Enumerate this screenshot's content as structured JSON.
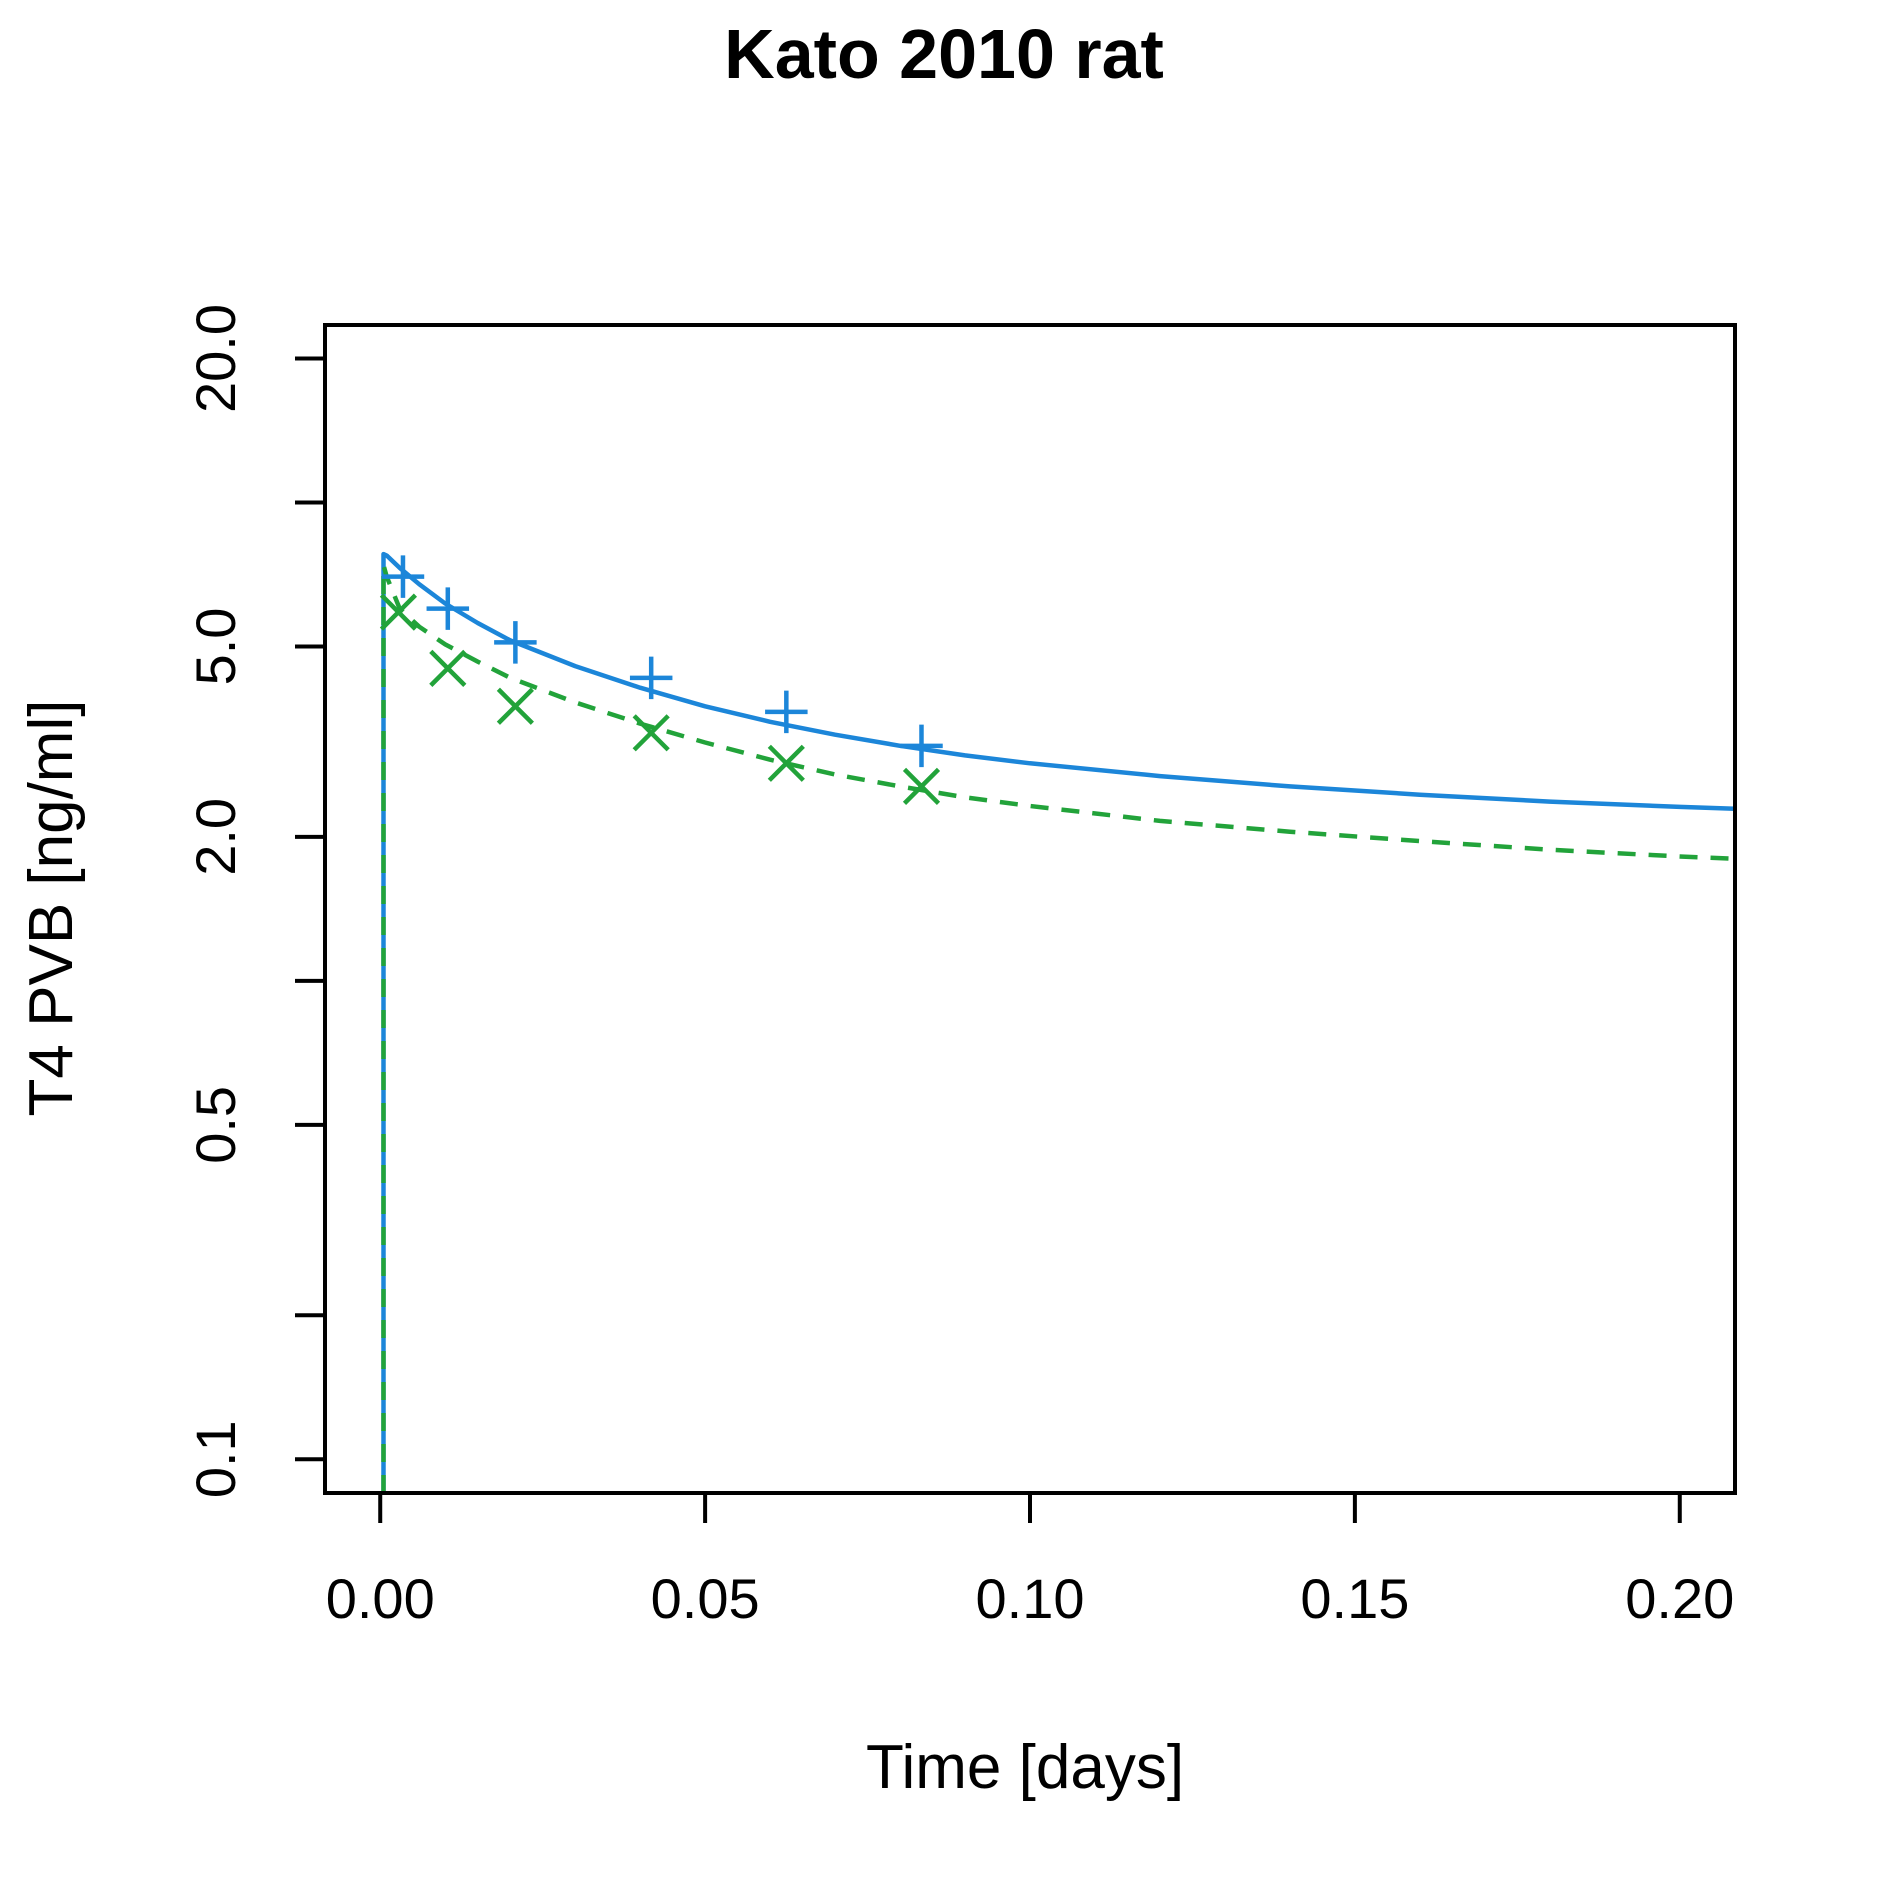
{
  "chart_data": {
    "type": "line",
    "title": "Kato 2010 rat",
    "xlabel": "Time [days]",
    "ylabel": "T4 PVB [ng/ml]",
    "xlim": [
      -0.0085,
      0.2085
    ],
    "ylim": [
      0.085,
      23.5
    ],
    "y_scale": "log",
    "x_ticks": [
      0.0,
      0.05,
      0.1,
      0.15,
      0.2
    ],
    "x_tick_labels": [
      "0.00",
      "0.05",
      "0.10",
      "0.15",
      "0.20"
    ],
    "y_ticks": [
      0.1,
      0.2,
      0.5,
      1.0,
      2.0,
      5.0,
      10.0,
      20.0
    ],
    "y_tick_labels": [
      "0.1",
      "",
      "0.5",
      "",
      "2.0",
      "5.0",
      "",
      "20.0"
    ],
    "grid": false,
    "legend": false,
    "series": [
      {
        "kind": "line",
        "style": "solid",
        "color": "#1c86d9",
        "x": [
          0.0005,
          0.0005,
          0.001,
          0.003,
          0.006,
          0.01,
          0.015,
          0.02,
          0.03,
          0.04,
          0.05,
          0.06,
          0.07,
          0.08,
          0.09,
          0.1,
          0.12,
          0.14,
          0.16,
          0.18,
          0.2,
          0.2085
        ],
        "values": [
          0.085,
          7.8,
          7.75,
          7.3,
          6.75,
          6.15,
          5.6,
          5.15,
          4.55,
          4.1,
          3.75,
          3.48,
          3.27,
          3.1,
          2.96,
          2.85,
          2.68,
          2.55,
          2.45,
          2.37,
          2.31,
          2.29
        ]
      },
      {
        "kind": "line",
        "style": "dashed",
        "color": "#22a33a",
        "x": [
          0.0005,
          0.0005,
          0.001,
          0.003,
          0.006,
          0.01,
          0.015,
          0.02,
          0.03,
          0.04,
          0.05,
          0.06,
          0.07,
          0.08,
          0.09,
          0.1,
          0.12,
          0.14,
          0.16,
          0.18,
          0.2,
          0.2085
        ],
        "values": [
          0.085,
          7.4,
          7.0,
          6.0,
          5.5,
          5.05,
          4.65,
          4.3,
          3.82,
          3.45,
          3.15,
          2.9,
          2.7,
          2.55,
          2.42,
          2.32,
          2.16,
          2.05,
          1.96,
          1.88,
          1.82,
          1.8
        ]
      },
      {
        "kind": "points",
        "marker": "plus",
        "color": "#1c86d9",
        "x": [
          0.0035,
          0.0104,
          0.0208,
          0.0417,
          0.0625,
          0.0833
        ],
        "values": [
          7.0,
          6.0,
          5.1,
          4.3,
          3.65,
          3.1
        ]
      },
      {
        "kind": "points",
        "marker": "x",
        "color": "#22a33a",
        "x": [
          0.0028,
          0.0104,
          0.0208,
          0.0417,
          0.0625,
          0.0833
        ],
        "values": [
          5.9,
          4.5,
          3.75,
          3.3,
          2.85,
          2.55
        ]
      }
    ]
  }
}
